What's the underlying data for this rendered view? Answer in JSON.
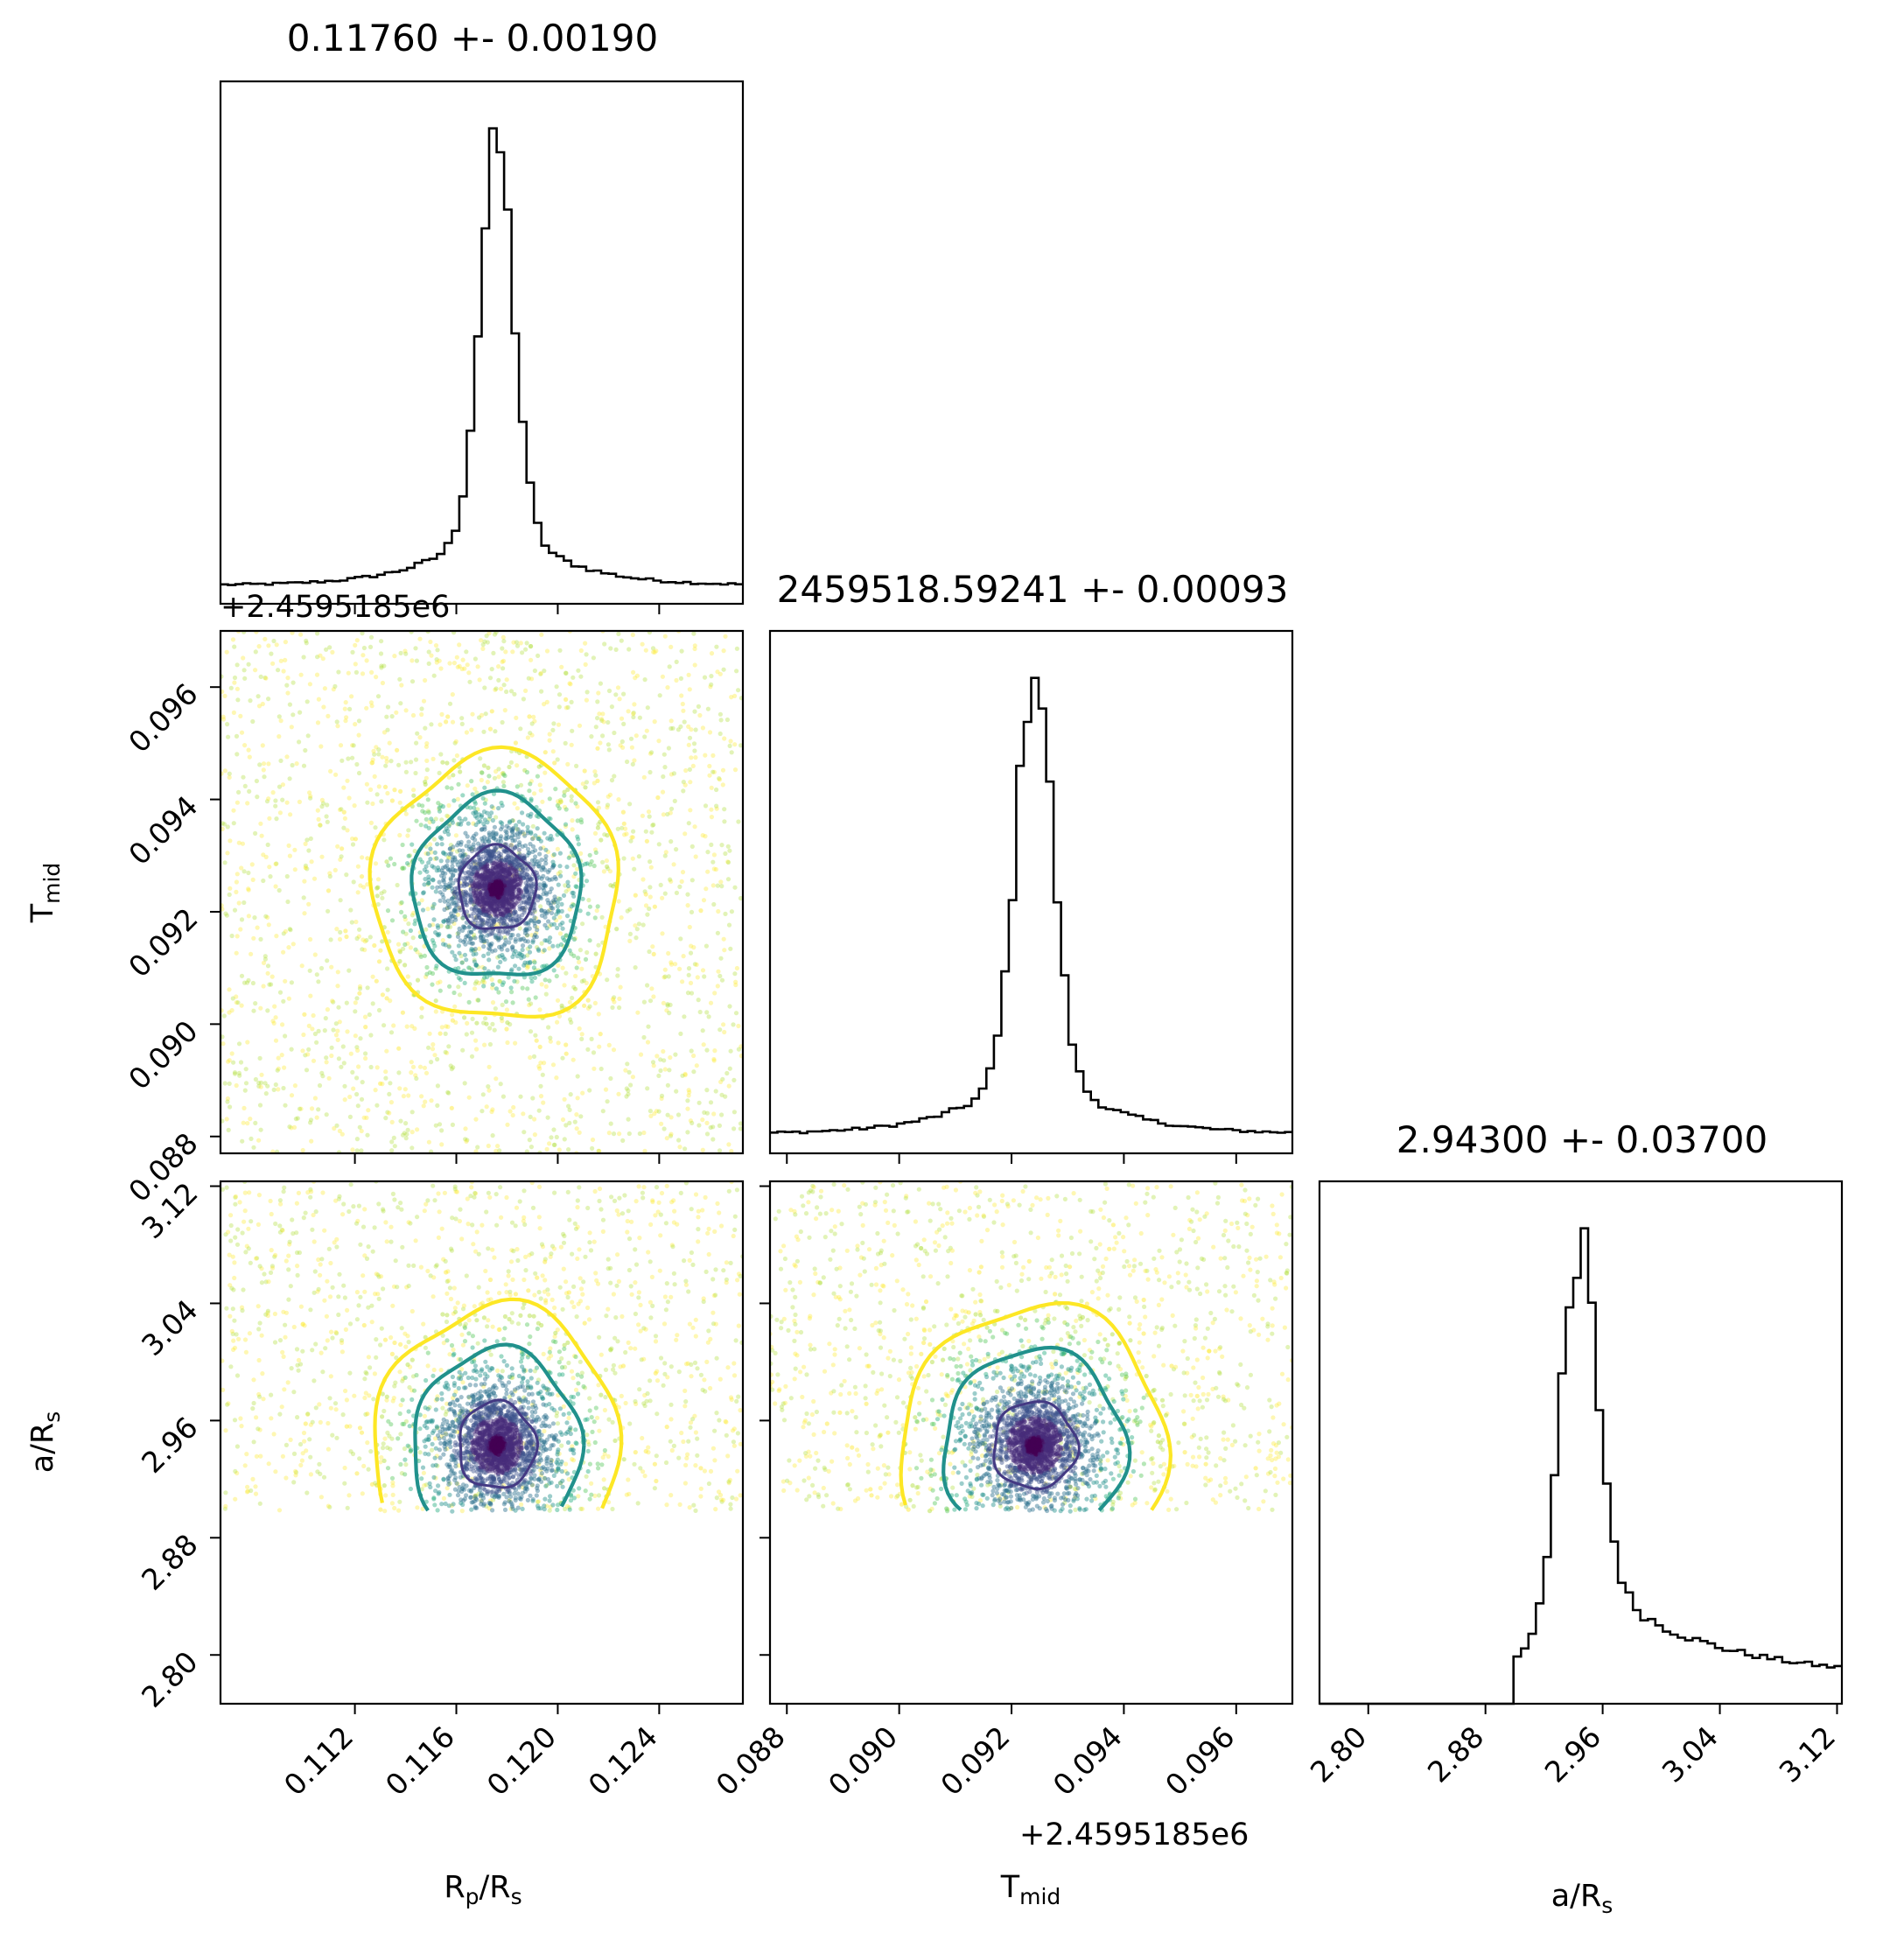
{
  "chart_data": {
    "type": "corner",
    "parameters": [
      {
        "label": "R",
        "label_sub": "p",
        "label_tail": "/R",
        "label_sub2": "s",
        "range": [
          0.1067,
          0.1273
        ],
        "ticks": [
          "0.112",
          "0.116",
          "0.120",
          "0.124"
        ],
        "tick_values": [
          0.112,
          0.116,
          0.12,
          0.124
        ],
        "title": "0.11760 +- 0.00190",
        "mode": 0.1176,
        "sigma": 0.0019,
        "shape": "peaked"
      },
      {
        "label": "T",
        "label_sub": "mid",
        "label_tail": "",
        "label_sub2": "",
        "range": [
          0.0877,
          0.097
        ],
        "ticks": [
          "0.088",
          "0.090",
          "0.092",
          "0.094",
          "0.096"
        ],
        "tick_values": [
          0.088,
          0.09,
          0.092,
          0.094,
          0.096
        ],
        "offset": "+2.4595185e6",
        "title": "2459518.59241 +- 0.00093",
        "mode": 0.09241,
        "sigma": 0.00093,
        "shape": "peaked"
      },
      {
        "label": "a/R",
        "label_sub": "s",
        "label_tail": "",
        "label_sub2": "",
        "range": [
          2.7667,
          3.1233
        ],
        "ticks": [
          "2.80",
          "2.88",
          "2.96",
          "3.04",
          "3.12"
        ],
        "tick_values": [
          2.8,
          2.88,
          2.96,
          3.04,
          3.12
        ],
        "title": "2.94300 +- 0.03700",
        "mode": 2.943,
        "sigma": 0.037,
        "lower_cut": 2.898,
        "shape": "truncated"
      }
    ],
    "contour_colors": [
      "#fde725",
      "#21918c",
      "#443983"
    ],
    "scatter_palette": [
      "#fde725",
      "#addc30",
      "#5ec962",
      "#28ae80",
      "#21918c",
      "#2c728e",
      "#3b528b",
      "#472d7b",
      "#440154"
    ]
  }
}
